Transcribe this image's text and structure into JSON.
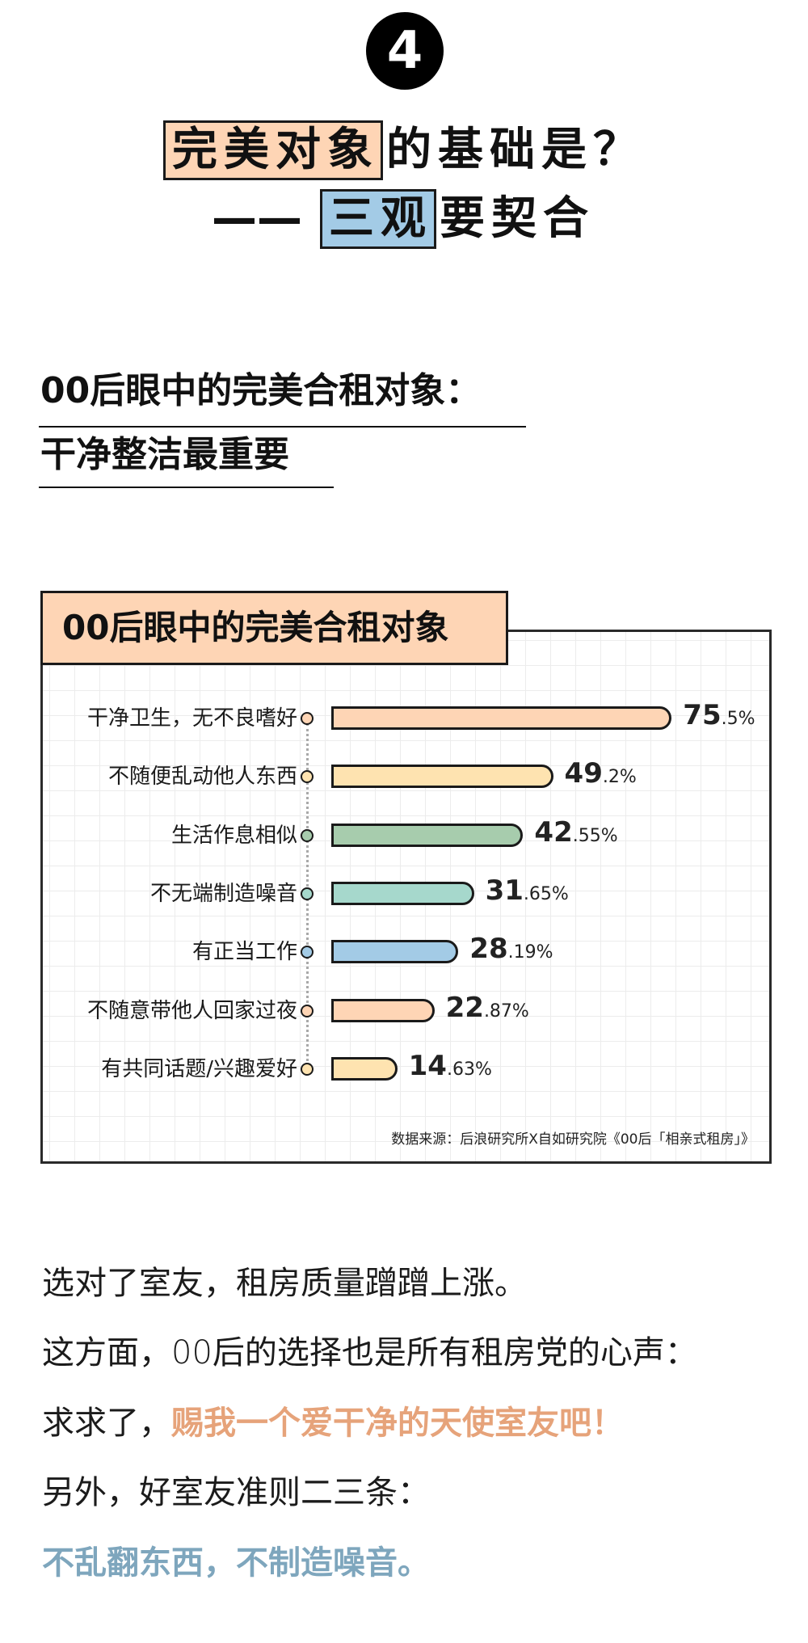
{
  "section_number": "4",
  "headline": {
    "line1": {
      "highlight": "完美对象",
      "rest": "的基础是？"
    },
    "line2": {
      "prefix": "——",
      "highlight": "三观",
      "rest": "要契合"
    }
  },
  "subheading": {
    "line1": "00后眼中的完美合租对象：",
    "line2": "干净整洁最重要"
  },
  "chart": {
    "header": "00后眼中的完美合租对象",
    "source": "数据来源：后浪研究所X自如研究院《00后「相亲式租房」》",
    "colors": {
      "peach": "#fed5b5",
      "yellow": "#fee3b0",
      "green": "#a7ccad",
      "teal": "#a6d8cc",
      "blue": "#a3cbe6"
    },
    "rows": [
      {
        "label": "干净卫生，无不良嗜好",
        "int": "75",
        "dec": ".5%",
        "color": "#fed5b5"
      },
      {
        "label": "不随便乱动他人东西",
        "int": "49",
        "dec": ".2%",
        "color": "#fee3b0"
      },
      {
        "label": "生活作息相似",
        "int": "42",
        "dec": ".55%",
        "color": "#a7ccad"
      },
      {
        "label": "不无端制造噪音",
        "int": "31",
        "dec": ".65%",
        "color": "#a6d8cc"
      },
      {
        "label": "有正当工作",
        "int": "28",
        "dec": ".19%",
        "color": "#a3cbe6"
      },
      {
        "label": "不随意带他人回家过夜",
        "int": "22",
        "dec": ".87%",
        "color": "#fed5b5"
      },
      {
        "label": "有共同话题/兴趣爱好",
        "int": "14",
        "dec": ".63%",
        "color": "#fee3b0"
      }
    ]
  },
  "chart_data": {
    "type": "bar",
    "orientation": "horizontal",
    "title": "00后眼中的完美合租对象",
    "categories": [
      "干净卫生，无不良嗜好",
      "不随便乱动他人东西",
      "生活作息相似",
      "不无端制造噪音",
      "有正当工作",
      "不随意带他人回家过夜",
      "有共同话题/兴趣爱好"
    ],
    "values": [
      75.5,
      49.2,
      42.55,
      31.65,
      28.19,
      22.87,
      14.63
    ],
    "unit": "%",
    "xlabel": "",
    "ylabel": "",
    "grid": true,
    "annotations": [
      "数据来源：后浪研究所X自如研究院《00后「相亲式租房」》"
    ]
  },
  "body": {
    "p1": "选对了室友，租房质量蹭蹭上涨。",
    "p2": "这方面，00后的选择也是所有租房党的心声：",
    "p3_prefix": "求求了，",
    "p3_accent": "赐我一个爱干净的天使室友吧！",
    "p4": "另外，好室友准则二三条：",
    "p5_accent": "不乱翻东西，不制造噪音。"
  }
}
